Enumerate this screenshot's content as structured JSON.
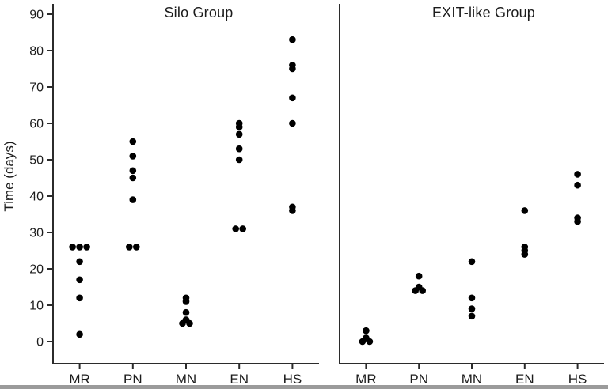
{
  "figure": {
    "background_color": "#ffffff",
    "dot_color": "#000000",
    "axis_color": "#2b2b2b",
    "text_color": "#1c1c1c",
    "bottom_bar_color": "#9b9b9b"
  },
  "chart_data": {
    "type": "scatter",
    "subtype": "strip-plot",
    "title": "",
    "xlabel": "",
    "ylabel": "Time (days)",
    "ylim": [
      0,
      90
    ],
    "yticks": [
      0,
      10,
      20,
      30,
      40,
      50,
      60,
      70,
      80,
      90
    ],
    "grid": false,
    "legend_position": "none",
    "categories": [
      "MR",
      "PN",
      "MN",
      "EN",
      "HS"
    ],
    "panels": [
      {
        "title": "Silo Group",
        "points": {
          "MR": [
            26,
            26,
            26,
            22,
            17,
            12,
            2
          ],
          "PN": [
            55,
            51,
            47,
            45,
            39,
            26,
            26
          ],
          "MN": [
            12,
            11,
            8,
            6,
            5,
            5
          ],
          "EN": [
            60,
            59,
            57,
            53,
            50,
            31,
            31
          ],
          "HS": [
            83,
            76,
            75,
            67,
            60,
            37,
            36
          ]
        }
      },
      {
        "title": "EXIT-like Group",
        "points": {
          "MR": [
            3,
            1,
            0,
            0
          ],
          "PN": [
            18,
            15,
            14,
            14
          ],
          "MN": [
            22,
            12,
            9,
            7
          ],
          "EN": [
            36,
            26,
            25,
            24
          ],
          "HS": [
            46,
            43,
            34,
            33
          ]
        }
      }
    ]
  }
}
